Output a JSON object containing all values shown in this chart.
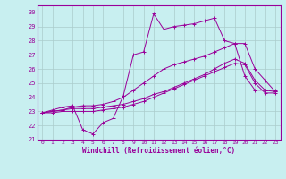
{
  "xlabel": "Windchill (Refroidissement éolien,°C)",
  "xlim": [
    -0.5,
    23.5
  ],
  "ylim": [
    21,
    30.5
  ],
  "yticks": [
    21,
    22,
    23,
    24,
    25,
    26,
    27,
    28,
    29,
    30
  ],
  "xticks": [
    0,
    1,
    2,
    3,
    4,
    5,
    6,
    7,
    8,
    9,
    10,
    11,
    12,
    13,
    14,
    15,
    16,
    17,
    18,
    19,
    20,
    21,
    22,
    23
  ],
  "bg_color": "#c8eff0",
  "line_color": "#990099",
  "grid_color": "#aacccc",
  "lines": [
    [
      22.9,
      23.1,
      23.3,
      23.4,
      21.7,
      21.4,
      22.2,
      22.5,
      24.1,
      27.0,
      27.2,
      29.9,
      28.8,
      29.0,
      29.1,
      29.2,
      29.4,
      29.6,
      28.0,
      27.8,
      25.5,
      24.5,
      24.5,
      24.5
    ],
    [
      22.9,
      23.0,
      23.1,
      23.3,
      23.4,
      23.4,
      23.5,
      23.7,
      24.0,
      24.5,
      25.0,
      25.5,
      26.0,
      26.3,
      26.5,
      26.7,
      26.9,
      27.2,
      27.5,
      27.8,
      27.8,
      26.0,
      25.2,
      24.4
    ],
    [
      22.9,
      23.0,
      23.1,
      23.2,
      23.2,
      23.2,
      23.3,
      23.4,
      23.5,
      23.7,
      23.9,
      24.2,
      24.4,
      24.7,
      25.0,
      25.3,
      25.6,
      26.0,
      26.4,
      26.7,
      26.4,
      25.2,
      24.5,
      24.4
    ],
    [
      22.9,
      22.9,
      23.0,
      23.0,
      23.0,
      23.0,
      23.1,
      23.2,
      23.3,
      23.5,
      23.7,
      24.0,
      24.3,
      24.6,
      24.9,
      25.2,
      25.5,
      25.8,
      26.1,
      26.4,
      26.3,
      25.0,
      24.3,
      24.3
    ]
  ]
}
